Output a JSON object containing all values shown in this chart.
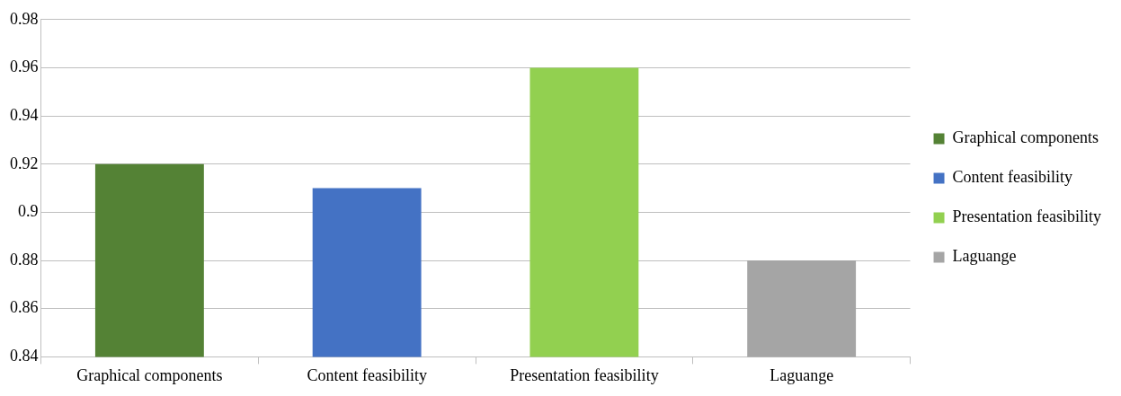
{
  "chart_data": {
    "type": "bar",
    "categories": [
      "Graphical components",
      "Content feasibility",
      "Presentation feasibility",
      "Laguange"
    ],
    "series": [
      {
        "name": "Graphical components",
        "color": "#548235",
        "values": [
          0.92,
          null,
          null,
          null
        ]
      },
      {
        "name": "Content feasibility",
        "color": "#4472c4",
        "values": [
          null,
          0.91,
          null,
          null
        ]
      },
      {
        "name": "Presentation feasibility",
        "color": "#92d050",
        "values": [
          null,
          null,
          0.96,
          null
        ]
      },
      {
        "name": "Laguange",
        "color": "#a5a5a5",
        "values": [
          null,
          null,
          null,
          0.88
        ]
      }
    ],
    "ylim": [
      0.84,
      0.98
    ],
    "yticks": [
      0.84,
      0.86,
      0.88,
      0.9,
      0.92,
      0.94,
      0.96,
      0.98
    ],
    "grid": "y",
    "legend": "right"
  }
}
